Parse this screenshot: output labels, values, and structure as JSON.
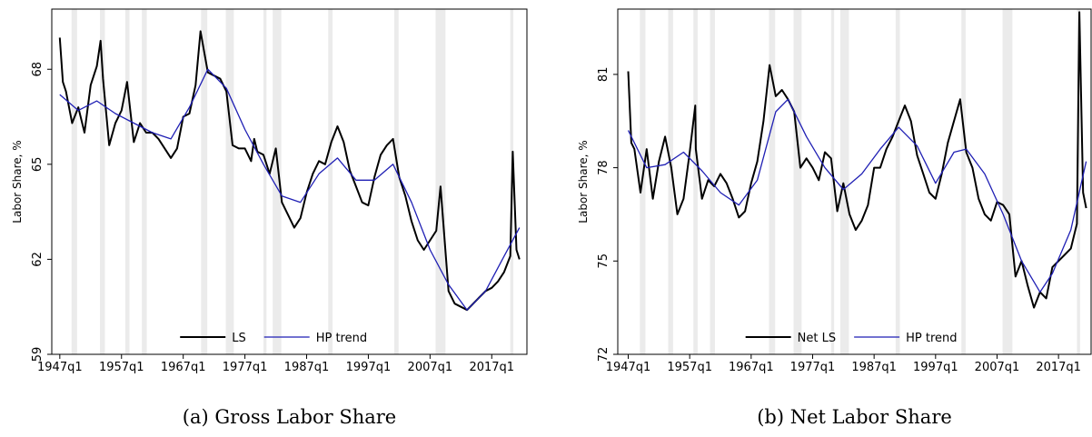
{
  "chart_data": [
    {
      "type": "line",
      "caption": "(a) Gross Labor Share",
      "y_label": "Labor Share, %",
      "xlim": [
        1945.7,
        2022.7
      ],
      "ylim": [
        59,
        69.9
      ],
      "xticks": [
        {
          "value": 1947,
          "label": "1947q1"
        },
        {
          "value": 1957,
          "label": "1957q1"
        },
        {
          "value": 1967,
          "label": "1967q1"
        },
        {
          "value": 1977,
          "label": "1977q1"
        },
        {
          "value": 1987,
          "label": "1987q1"
        },
        {
          "value": 1997,
          "label": "1997q1"
        },
        {
          "value": 2007,
          "label": "2007q1"
        },
        {
          "value": 2017,
          "label": "2017q1"
        }
      ],
      "yticks": [
        59,
        62,
        65,
        68
      ],
      "shaded_periods": [
        [
          1948.9,
          1949.8
        ],
        [
          1953.5,
          1954.3
        ],
        [
          1957.6,
          1958.3
        ],
        [
          1960.3,
          1961.1
        ],
        [
          1969.9,
          1970.9
        ],
        [
          1973.9,
          1975.2
        ],
        [
          1980.0,
          1980.5
        ],
        [
          1981.5,
          1982.9
        ],
        [
          1990.5,
          1991.2
        ],
        [
          2001.2,
          2001.9
        ],
        [
          2007.9,
          2009.5
        ],
        [
          2020.0,
          2020.5
        ]
      ],
      "series": [
        {
          "name": "LS",
          "color": "#000000",
          "x": [
            1947,
            1947.5,
            1948,
            1949,
            1950,
            1951,
            1952,
            1953,
            1953.6,
            1954,
            1955,
            1956,
            1957,
            1957.9,
            1959,
            1960,
            1961,
            1962,
            1963,
            1964,
            1965,
            1966,
            1967,
            1968,
            1969,
            1969.8,
            1971,
            1972,
            1973,
            1974,
            1975,
            1976,
            1977,
            1978,
            1978.5,
            1979,
            1980,
            1981,
            1982,
            1983,
            1984,
            1985,
            1986,
            1987,
            1988,
            1989,
            1990,
            1991,
            1992,
            1993,
            1994,
            1995,
            1996,
            1997,
            1998,
            1999,
            2000,
            2001,
            2002,
            2003,
            2004,
            2005,
            2006,
            2007,
            2008,
            2008.7,
            2010,
            2011,
            2012,
            2013,
            2014,
            2015,
            2016,
            2017,
            2018,
            2019,
            2020,
            2020.4,
            2021,
            2021.5
          ],
          "values": [
            69.0,
            67.6,
            67.3,
            66.3,
            66.8,
            66.0,
            67.5,
            68.1,
            68.9,
            67.7,
            65.6,
            66.3,
            66.7,
            67.6,
            65.7,
            66.3,
            66.0,
            66.0,
            65.8,
            65.5,
            65.2,
            65.5,
            66.5,
            66.6,
            67.5,
            69.2,
            67.9,
            67.8,
            67.7,
            67.3,
            65.6,
            65.5,
            65.5,
            65.1,
            65.8,
            65.4,
            65.3,
            64.7,
            65.5,
            63.8,
            63.4,
            63.0,
            63.3,
            64.1,
            64.7,
            65.1,
            65.0,
            65.7,
            66.2,
            65.7,
            64.8,
            64.3,
            63.8,
            63.7,
            64.6,
            65.3,
            65.6,
            65.8,
            64.6,
            64.0,
            63.2,
            62.6,
            62.3,
            62.6,
            62.9,
            64.3,
            61.0,
            60.6,
            60.5,
            60.4,
            60.6,
            60.8,
            61.0,
            61.1,
            61.3,
            61.6,
            62.1,
            65.4,
            62.3,
            62.0
          ]
        },
        {
          "name": "HP trend",
          "color": "#1f1fb4",
          "x": [
            1947,
            1950,
            1953,
            1956,
            1959,
            1962,
            1965,
            1968,
            1971,
            1974,
            1977,
            1980,
            1983,
            1986,
            1989,
            1992,
            1995,
            1998,
            2001,
            2004,
            2007,
            2010,
            2013,
            2016,
            2019,
            2021.5
          ],
          "values": [
            67.2,
            66.7,
            67.0,
            66.6,
            66.3,
            66.0,
            65.8,
            66.8,
            68.0,
            67.4,
            66.1,
            65.0,
            64.0,
            63.8,
            64.7,
            65.2,
            64.5,
            64.5,
            65.0,
            63.8,
            62.3,
            61.2,
            60.4,
            61.0,
            62.1,
            63.0
          ]
        }
      ]
    },
    {
      "type": "line",
      "caption": "(b) Net Labor Share",
      "y_label": "Labor Share, %",
      "xlim": [
        1945.3,
        2022.3
      ],
      "ylim": [
        72,
        83.1
      ],
      "xticks": [
        {
          "value": 1947,
          "label": "1947q1"
        },
        {
          "value": 1957,
          "label": "1957q1"
        },
        {
          "value": 1967,
          "label": "1967q1"
        },
        {
          "value": 1977,
          "label": "1977q1"
        },
        {
          "value": 1987,
          "label": "1987q1"
        },
        {
          "value": 1997,
          "label": "1997q1"
        },
        {
          "value": 2007,
          "label": "2007q1"
        },
        {
          "value": 2017,
          "label": "2017q1"
        }
      ],
      "yticks": [
        72,
        75,
        78,
        81
      ],
      "shaded_periods": [
        [
          1948.9,
          1949.8
        ],
        [
          1953.5,
          1954.3
        ],
        [
          1957.6,
          1958.3
        ],
        [
          1960.3,
          1961.1
        ],
        [
          1969.9,
          1970.9
        ],
        [
          1973.9,
          1975.2
        ],
        [
          1980.0,
          1980.5
        ],
        [
          1981.5,
          1982.9
        ],
        [
          1990.5,
          1991.2
        ],
        [
          2001.2,
          2001.9
        ],
        [
          2007.9,
          2009.5
        ],
        [
          2020.0,
          2020.5
        ]
      ],
      "series": [
        {
          "name": "Net LS",
          "color": "#000000",
          "x": [
            1947,
            1947.5,
            1948,
            1949,
            1950,
            1951,
            1952,
            1953,
            1954,
            1955,
            1956,
            1957,
            1957.9,
            1958,
            1959,
            1960,
            1961,
            1962,
            1963,
            1964,
            1965,
            1966,
            1967,
            1968,
            1969,
            1970,
            1971,
            1972,
            1973,
            1974,
            1975,
            1976,
            1977,
            1978,
            1979,
            1980,
            1981,
            1982,
            1983,
            1984,
            1985,
            1986,
            1987,
            1988,
            1989,
            1990,
            1991,
            1992,
            1993,
            1994,
            1995,
            1996,
            1997,
            1998,
            1999,
            2000,
            2001,
            2002,
            2003,
            2004,
            2005,
            2006,
            2007,
            2008,
            2009,
            2010,
            2011,
            2012,
            2013,
            2014,
            2015,
            2016,
            2017,
            2018,
            2019,
            2020,
            2020.4,
            2021,
            2021.5
          ],
          "values": [
            81.1,
            78.8,
            78.6,
            77.2,
            78.6,
            77.0,
            78.2,
            79.0,
            78.0,
            76.5,
            77.0,
            78.5,
            80.0,
            78.6,
            77.0,
            77.6,
            77.4,
            77.8,
            77.5,
            77.0,
            76.4,
            76.6,
            77.5,
            78.2,
            79.5,
            81.3,
            80.3,
            80.5,
            80.2,
            79.8,
            78.0,
            78.3,
            78.0,
            77.6,
            78.5,
            78.3,
            76.6,
            77.5,
            76.5,
            76.0,
            76.3,
            76.8,
            78.0,
            78.0,
            78.6,
            79.0,
            79.5,
            80.0,
            79.5,
            78.4,
            77.8,
            77.2,
            77.0,
            77.8,
            78.8,
            79.5,
            80.2,
            78.5,
            78.0,
            77.0,
            76.5,
            76.3,
            76.9,
            76.8,
            76.5,
            74.5,
            75.0,
            74.2,
            73.5,
            74.0,
            73.8,
            74.8,
            75.0,
            75.2,
            75.4,
            76.2,
            83.0,
            77.2,
            76.7
          ]
        },
        {
          "name": "HP trend",
          "color": "#1f1fb4",
          "x": [
            1947,
            1950,
            1953,
            1956,
            1959,
            1962,
            1965,
            1968,
            1971,
            1973,
            1976,
            1979,
            1982,
            1985,
            1988,
            1991,
            1994,
            1997,
            2000,
            2002,
            2005,
            2008,
            2011,
            2014,
            2016,
            2019,
            2021.5
          ],
          "values": [
            79.2,
            78.0,
            78.1,
            78.5,
            77.9,
            77.2,
            76.8,
            77.6,
            79.8,
            80.2,
            79.0,
            78.0,
            77.3,
            77.8,
            78.6,
            79.3,
            78.7,
            77.5,
            78.5,
            78.6,
            77.8,
            76.5,
            75.0,
            74.0,
            74.6,
            76.0,
            78.2
          ]
        }
      ]
    }
  ]
}
